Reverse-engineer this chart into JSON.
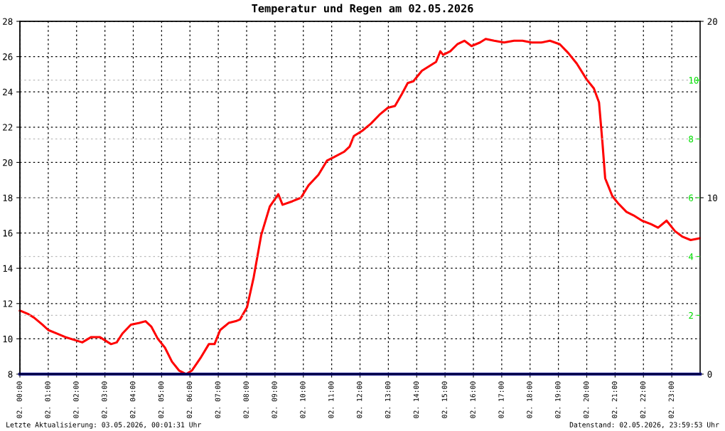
{
  "chart_data": {
    "type": "line",
    "title": "Temperatur und Regen am 02.05.2026",
    "xlim": [
      "2026-05-02T00:00",
      "2026-05-03T00:00"
    ],
    "xticks": [
      {
        "value": "2026-05-02T00:00",
        "label": "02. 00:00"
      },
      {
        "value": "2026-05-02T01:00",
        "label": "02. 01:00"
      },
      {
        "value": "2026-05-02T02:00",
        "label": "02. 02:00"
      },
      {
        "value": "2026-05-02T03:00",
        "label": "02. 03:00"
      },
      {
        "value": "2026-05-02T04:00",
        "label": "02. 04:00"
      },
      {
        "value": "2026-05-02T05:00",
        "label": "02. 05:00"
      },
      {
        "value": "2026-05-02T06:00",
        "label": "02. 06:00"
      },
      {
        "value": "2026-05-02T07:00",
        "label": "02. 07:00"
      },
      {
        "value": "2026-05-02T08:00",
        "label": "02. 08:00"
      },
      {
        "value": "2026-05-02T09:00",
        "label": "02. 09:00"
      },
      {
        "value": "2026-05-02T10:00",
        "label": "02. 10:00"
      },
      {
        "value": "2026-05-02T11:00",
        "label": "02. 11:00"
      },
      {
        "value": "2026-05-02T12:00",
        "label": "02. 12:00"
      },
      {
        "value": "2026-05-02T13:00",
        "label": "02. 13:00"
      },
      {
        "value": "2026-05-02T14:00",
        "label": "02. 14:00"
      },
      {
        "value": "2026-05-02T15:00",
        "label": "02. 15:00"
      },
      {
        "value": "2026-05-02T16:00",
        "label": "02. 16:00"
      },
      {
        "value": "2026-05-02T17:00",
        "label": "02. 17:00"
      },
      {
        "value": "2026-05-02T18:00",
        "label": "02. 18:00"
      },
      {
        "value": "2026-05-02T19:00",
        "label": "02. 19:00"
      },
      {
        "value": "2026-05-02T20:00",
        "label": "02. 20:00"
      },
      {
        "value": "2026-05-02T21:00",
        "label": "02. 21:00"
      },
      {
        "value": "2026-05-02T22:00",
        "label": "02. 22:00"
      },
      {
        "value": "2026-05-02T23:00",
        "label": "02. 23:00"
      }
    ],
    "ylim": [
      8,
      28
    ],
    "yticks": [
      8,
      10,
      12,
      14,
      16,
      18,
      20,
      22,
      24,
      26,
      28
    ],
    "y2lim": [
      0,
      20
    ],
    "y2ticks": [
      0,
      10,
      20
    ],
    "y3lim": [
      0,
      12
    ],
    "y3ticks": [
      2,
      4,
      6,
      8,
      10
    ],
    "grid": true,
    "legend": false,
    "marker": "none",
    "line_style": "solid",
    "series": [
      {
        "color": "#ff0000",
        "x": [
          "2026-05-02T00:00",
          "2026-05-02T00:18",
          "2026-05-02T00:30",
          "2026-05-02T00:48",
          "2026-05-02T01:00",
          "2026-05-02T01:18",
          "2026-05-02T01:36",
          "2026-05-02T02:00",
          "2026-05-02T02:12",
          "2026-05-02T02:31",
          "2026-05-02T02:49",
          "2026-05-02T03:01",
          "2026-05-02T03:13",
          "2026-05-02T03:25",
          "2026-05-02T03:37",
          "2026-05-02T03:55",
          "2026-05-02T04:13",
          "2026-05-02T04:26",
          "2026-05-02T04:38",
          "2026-05-02T04:52",
          "2026-05-02T05:07",
          "2026-05-02T05:22",
          "2026-05-02T05:37",
          "2026-05-02T05:52",
          "2026-05-02T06:04",
          "2026-05-02T06:22",
          "2026-05-02T06:40",
          "2026-05-02T06:52",
          "2026-05-02T07:04",
          "2026-05-02T07:22",
          "2026-05-02T07:37",
          "2026-05-02T07:46",
          "2026-05-02T08:01",
          "2026-05-02T08:15",
          "2026-05-02T08:31",
          "2026-05-02T08:49",
          "2026-05-02T09:07",
          "2026-05-02T09:16",
          "2026-05-02T09:37",
          "2026-05-02T09:55",
          "2026-05-02T10:11",
          "2026-05-02T10:32",
          "2026-05-02T10:50",
          "2026-05-02T11:05",
          "2026-05-02T11:26",
          "2026-05-02T11:38",
          "2026-05-02T11:47",
          "2026-05-02T12:05",
          "2026-05-02T12:23",
          "2026-05-02T12:41",
          "2026-05-02T12:59",
          "2026-05-02T13:14",
          "2026-05-02T13:29",
          "2026-05-02T13:41",
          "2026-05-02T13:53",
          "2026-05-02T14:11",
          "2026-05-02T14:29",
          "2026-05-02T14:41",
          "2026-05-02T14:50",
          "2026-05-02T14:56",
          "2026-05-02T15:11",
          "2026-05-02T15:26",
          "2026-05-02T15:41",
          "2026-05-02T15:56",
          "2026-05-02T16:14",
          "2026-05-02T16:26",
          "2026-05-02T16:44",
          "2026-05-02T17:05",
          "2026-05-02T17:26",
          "2026-05-02T17:44",
          "2026-05-02T18:03",
          "2026-05-02T18:24",
          "2026-05-02T18:42",
          "2026-05-02T19:03",
          "2026-05-02T19:21",
          "2026-05-02T19:39",
          "2026-05-02T20:00",
          "2026-05-02T20:15",
          "2026-05-02T20:26",
          "2026-05-02T20:33",
          "2026-05-02T20:39",
          "2026-05-02T20:54",
          "2026-05-02T21:06",
          "2026-05-02T21:24",
          "2026-05-02T21:39",
          "2026-05-02T21:57",
          "2026-05-02T22:16",
          "2026-05-02T22:31",
          "2026-05-02T22:49",
          "2026-05-02T23:07",
          "2026-05-02T23:22",
          "2026-05-02T23:40",
          "2026-05-02T23:59"
        ],
        "values": [
          11.6,
          11.4,
          11.2,
          10.8,
          10.5,
          10.3,
          10.1,
          9.9,
          9.8,
          10.1,
          10.1,
          9.9,
          9.7,
          9.8,
          10.3,
          10.8,
          10.9,
          11.0,
          10.7,
          10.0,
          9.5,
          8.7,
          8.2,
          8.0,
          8.2,
          8.9,
          9.7,
          9.7,
          10.5,
          10.9,
          11.0,
          11.1,
          11.8,
          13.5,
          15.9,
          17.5,
          18.2,
          17.6,
          17.8,
          18.0,
          18.7,
          19.3,
          20.1,
          20.3,
          20.6,
          20.9,
          21.5,
          21.8,
          22.2,
          22.7,
          23.1,
          23.2,
          23.9,
          24.5,
          24.6,
          25.2,
          25.5,
          25.7,
          26.3,
          26.1,
          26.3,
          26.7,
          26.9,
          26.6,
          26.8,
          27.0,
          26.9,
          26.8,
          26.9,
          26.9,
          26.8,
          26.8,
          26.9,
          26.7,
          26.2,
          25.6,
          24.7,
          24.2,
          23.4,
          21.2,
          19.1,
          18.1,
          17.7,
          17.2,
          17.0,
          16.7,
          16.5,
          16.3,
          16.7,
          16.1,
          15.8,
          15.6,
          15.7
        ]
      },
      {
        "color": "#000080",
        "axis": "y2",
        "x": [
          "2026-05-02T00:00",
          "2026-05-03T00:00"
        ],
        "values": [
          0,
          0
        ]
      }
    ],
    "annotations": [
      "Letzte Aktualisierung: 03.05.2026, 00:01:31 Uhr",
      "Datenstand: 02.05.2026, 23:59:53 Uhr"
    ]
  }
}
